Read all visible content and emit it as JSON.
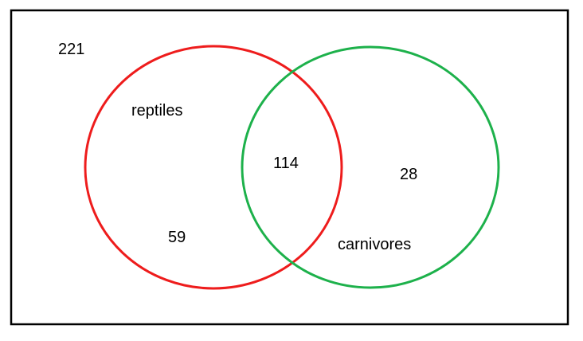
{
  "diagram": {
    "type": "venn",
    "outside": {
      "value": "221"
    },
    "sets": [
      {
        "name": "reptiles",
        "only_value": "59",
        "color": "#ee1c1c"
      },
      {
        "name": "carnivores",
        "only_value": "28",
        "color": "#1db14b"
      }
    ],
    "intersection": {
      "value": "114"
    },
    "frame_color": "#000000"
  }
}
